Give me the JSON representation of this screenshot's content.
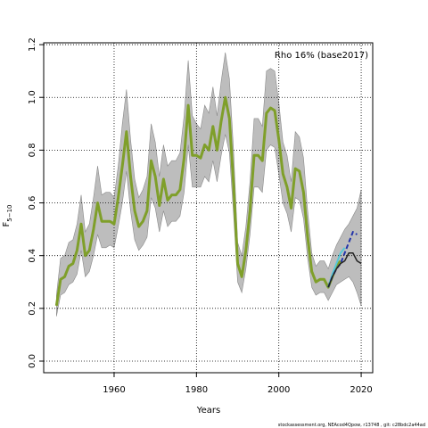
{
  "chart_data": {
    "type": "line",
    "annotation": "Rho 16% (base2017)",
    "xlabel": "Years",
    "ylabel": "F",
    "ylabel_sub": "5−10",
    "footer": "stockassessment.org, NEAcod4Qpow, r13748 , git: c28bdc2a44ad",
    "x": [
      1946,
      1947,
      1948,
      1949,
      1950,
      1951,
      1952,
      1953,
      1954,
      1955,
      1956,
      1957,
      1958,
      1959,
      1960,
      1961,
      1962,
      1963,
      1964,
      1965,
      1966,
      1967,
      1968,
      1969,
      1970,
      1971,
      1972,
      1973,
      1974,
      1975,
      1976,
      1977,
      1978,
      1979,
      1980,
      1981,
      1982,
      1983,
      1984,
      1985,
      1986,
      1987,
      1988,
      1989,
      1990,
      1991,
      1992,
      1993,
      1994,
      1995,
      1996,
      1997,
      1998,
      1999,
      2000,
      2001,
      2002,
      2003,
      2004,
      2005,
      2006,
      2007,
      2008,
      2009,
      2010,
      2011,
      2012,
      2013,
      2014,
      2015,
      2016,
      2017,
      2018,
      2019,
      2020
    ],
    "band": {
      "color": "#bdbdbd",
      "upper": [
        0.25,
        0.39,
        0.4,
        0.45,
        0.46,
        0.52,
        0.63,
        0.49,
        0.52,
        0.62,
        0.74,
        0.63,
        0.64,
        0.64,
        0.62,
        0.74,
        0.9,
        1.03,
        0.84,
        0.69,
        0.62,
        0.65,
        0.7,
        0.9,
        0.83,
        0.7,
        0.82,
        0.74,
        0.76,
        0.76,
        0.79,
        0.93,
        1.14,
        0.93,
        0.9,
        0.88,
        0.97,
        0.94,
        1.04,
        0.93,
        1.06,
        1.17,
        1.07,
        0.8,
        0.45,
        0.4,
        0.51,
        0.68,
        0.92,
        0.92,
        0.89,
        1.1,
        1.11,
        1.1,
        0.98,
        0.83,
        0.78,
        0.68,
        0.87,
        0.85,
        0.77,
        0.57,
        0.41,
        0.36,
        0.38,
        0.38,
        0.35,
        0.4,
        0.44,
        0.47,
        0.5,
        0.52,
        0.55,
        0.58,
        0.65
      ],
      "lower": [
        0.17,
        0.25,
        0.26,
        0.29,
        0.3,
        0.33,
        0.42,
        0.32,
        0.34,
        0.4,
        0.48,
        0.43,
        0.43,
        0.44,
        0.43,
        0.51,
        0.6,
        0.72,
        0.57,
        0.46,
        0.42,
        0.44,
        0.47,
        0.62,
        0.58,
        0.49,
        0.57,
        0.51,
        0.53,
        0.53,
        0.55,
        0.64,
        0.82,
        0.66,
        0.66,
        0.66,
        0.7,
        0.68,
        0.76,
        0.68,
        0.78,
        0.86,
        0.79,
        0.56,
        0.3,
        0.26,
        0.35,
        0.48,
        0.66,
        0.66,
        0.64,
        0.8,
        0.82,
        0.81,
        0.71,
        0.6,
        0.56,
        0.49,
        0.62,
        0.61,
        0.54,
        0.39,
        0.28,
        0.25,
        0.26,
        0.26,
        0.23,
        0.26,
        0.29,
        0.3,
        0.31,
        0.32,
        0.3,
        0.26,
        0.21
      ]
    },
    "series": [
      {
        "color": "#7f9f2a",
        "width": 3,
        "values": [
          0.21,
          0.31,
          0.32,
          0.36,
          0.37,
          0.42,
          0.52,
          0.4,
          0.42,
          0.5,
          0.6,
          0.53,
          0.53,
          0.53,
          0.52,
          0.62,
          0.74,
          0.87,
          0.7,
          0.57,
          0.51,
          0.53,
          0.57,
          0.76,
          0.7,
          0.59,
          0.69,
          0.61,
          0.63,
          0.63,
          0.65,
          0.77,
          0.97,
          0.78,
          0.78,
          0.77,
          0.82,
          0.8,
          0.89,
          0.8,
          0.91,
          1.0,
          0.92,
          0.67,
          0.37,
          0.32,
          0.42,
          0.57,
          0.78,
          0.78,
          0.76,
          0.94,
          0.96,
          0.95,
          0.84,
          0.71,
          0.66,
          0.58,
          0.73,
          0.72,
          0.64,
          0.47,
          0.34,
          0.3,
          0.31,
          0.31,
          0.28,
          0.32,
          0.36,
          0.38,
          null,
          null,
          null,
          null,
          null
        ]
      },
      {
        "color": "#55c8d8",
        "width": 2,
        "x": [
          2012,
          2013,
          2014,
          2015,
          2016
        ],
        "values": [
          0.28,
          0.33,
          0.37,
          0.41,
          0.43
        ]
      },
      {
        "color": "#2233aa",
        "width": 2,
        "dash": true,
        "x": [
          2012,
          2013,
          2014,
          2015,
          2016,
          2017,
          2018,
          2019
        ],
        "values": [
          0.28,
          0.32,
          0.35,
          0.37,
          0.41,
          0.45,
          0.49,
          0.48
        ]
      },
      {
        "color": "#222222",
        "width": 1.5,
        "x": [
          2012,
          2013,
          2014,
          2015,
          2016,
          2017,
          2018,
          2019,
          2020
        ],
        "values": [
          0.28,
          0.32,
          0.35,
          0.37,
          0.38,
          0.41,
          0.41,
          0.38,
          0.37
        ]
      }
    ],
    "xlim": [
      1942.9,
      2022.8
    ],
    "xticks": [
      1960,
      1980,
      2000,
      2020
    ],
    "ylim": [
      -0.044,
      1.207
    ],
    "yticks": [
      {
        "value": 0,
        "label": "0.0"
      },
      0.2,
      0.4,
      0.6,
      0.8,
      {
        "value": 1,
        "label": "1.0"
      },
      1.2
    ],
    "grid": true
  }
}
